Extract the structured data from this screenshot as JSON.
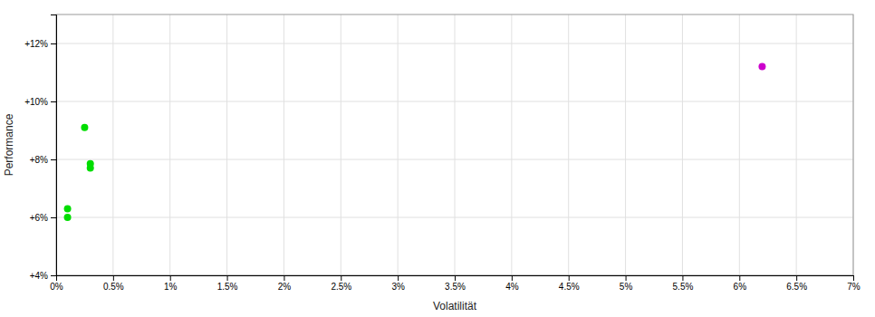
{
  "chart_data": {
    "type": "scatter",
    "xlabel": "Volatilität",
    "ylabel": "Performance",
    "xlim": [
      0,
      0.07
    ],
    "ylim": [
      0.04,
      0.13
    ],
    "xticks": [
      {
        "value": 0.0,
        "label": "0%"
      },
      {
        "value": 0.005,
        "label": "0.5%"
      },
      {
        "value": 0.01,
        "label": "1%"
      },
      {
        "value": 0.015,
        "label": "1.5%"
      },
      {
        "value": 0.02,
        "label": "2%"
      },
      {
        "value": 0.025,
        "label": "2.5%"
      },
      {
        "value": 0.03,
        "label": "3%"
      },
      {
        "value": 0.035,
        "label": "3.5%"
      },
      {
        "value": 0.04,
        "label": "4%"
      },
      {
        "value": 0.045,
        "label": "4.5%"
      },
      {
        "value": 0.05,
        "label": "5%"
      },
      {
        "value": 0.055,
        "label": "5.5%"
      },
      {
        "value": 0.06,
        "label": "6%"
      },
      {
        "value": 0.065,
        "label": "6.5%"
      },
      {
        "value": 0.07,
        "label": "7%"
      }
    ],
    "yticks": [
      {
        "value": 0.04,
        "label": "+4%"
      },
      {
        "value": 0.06,
        "label": "+6%"
      },
      {
        "value": 0.08,
        "label": "+8%"
      },
      {
        "value": 0.1,
        "label": "+10%"
      },
      {
        "value": 0.12,
        "label": "+12%"
      }
    ],
    "grid": true,
    "series": [
      {
        "color": "#00dd00",
        "x": [
          0.0025,
          0.003,
          0.003,
          0.001,
          0.001
        ],
        "values": [
          0.091,
          0.0785,
          0.077,
          0.063,
          0.06
        ]
      },
      {
        "color": "#cc00cc",
        "x": [
          0.062
        ],
        "values": [
          0.112
        ]
      }
    ]
  }
}
